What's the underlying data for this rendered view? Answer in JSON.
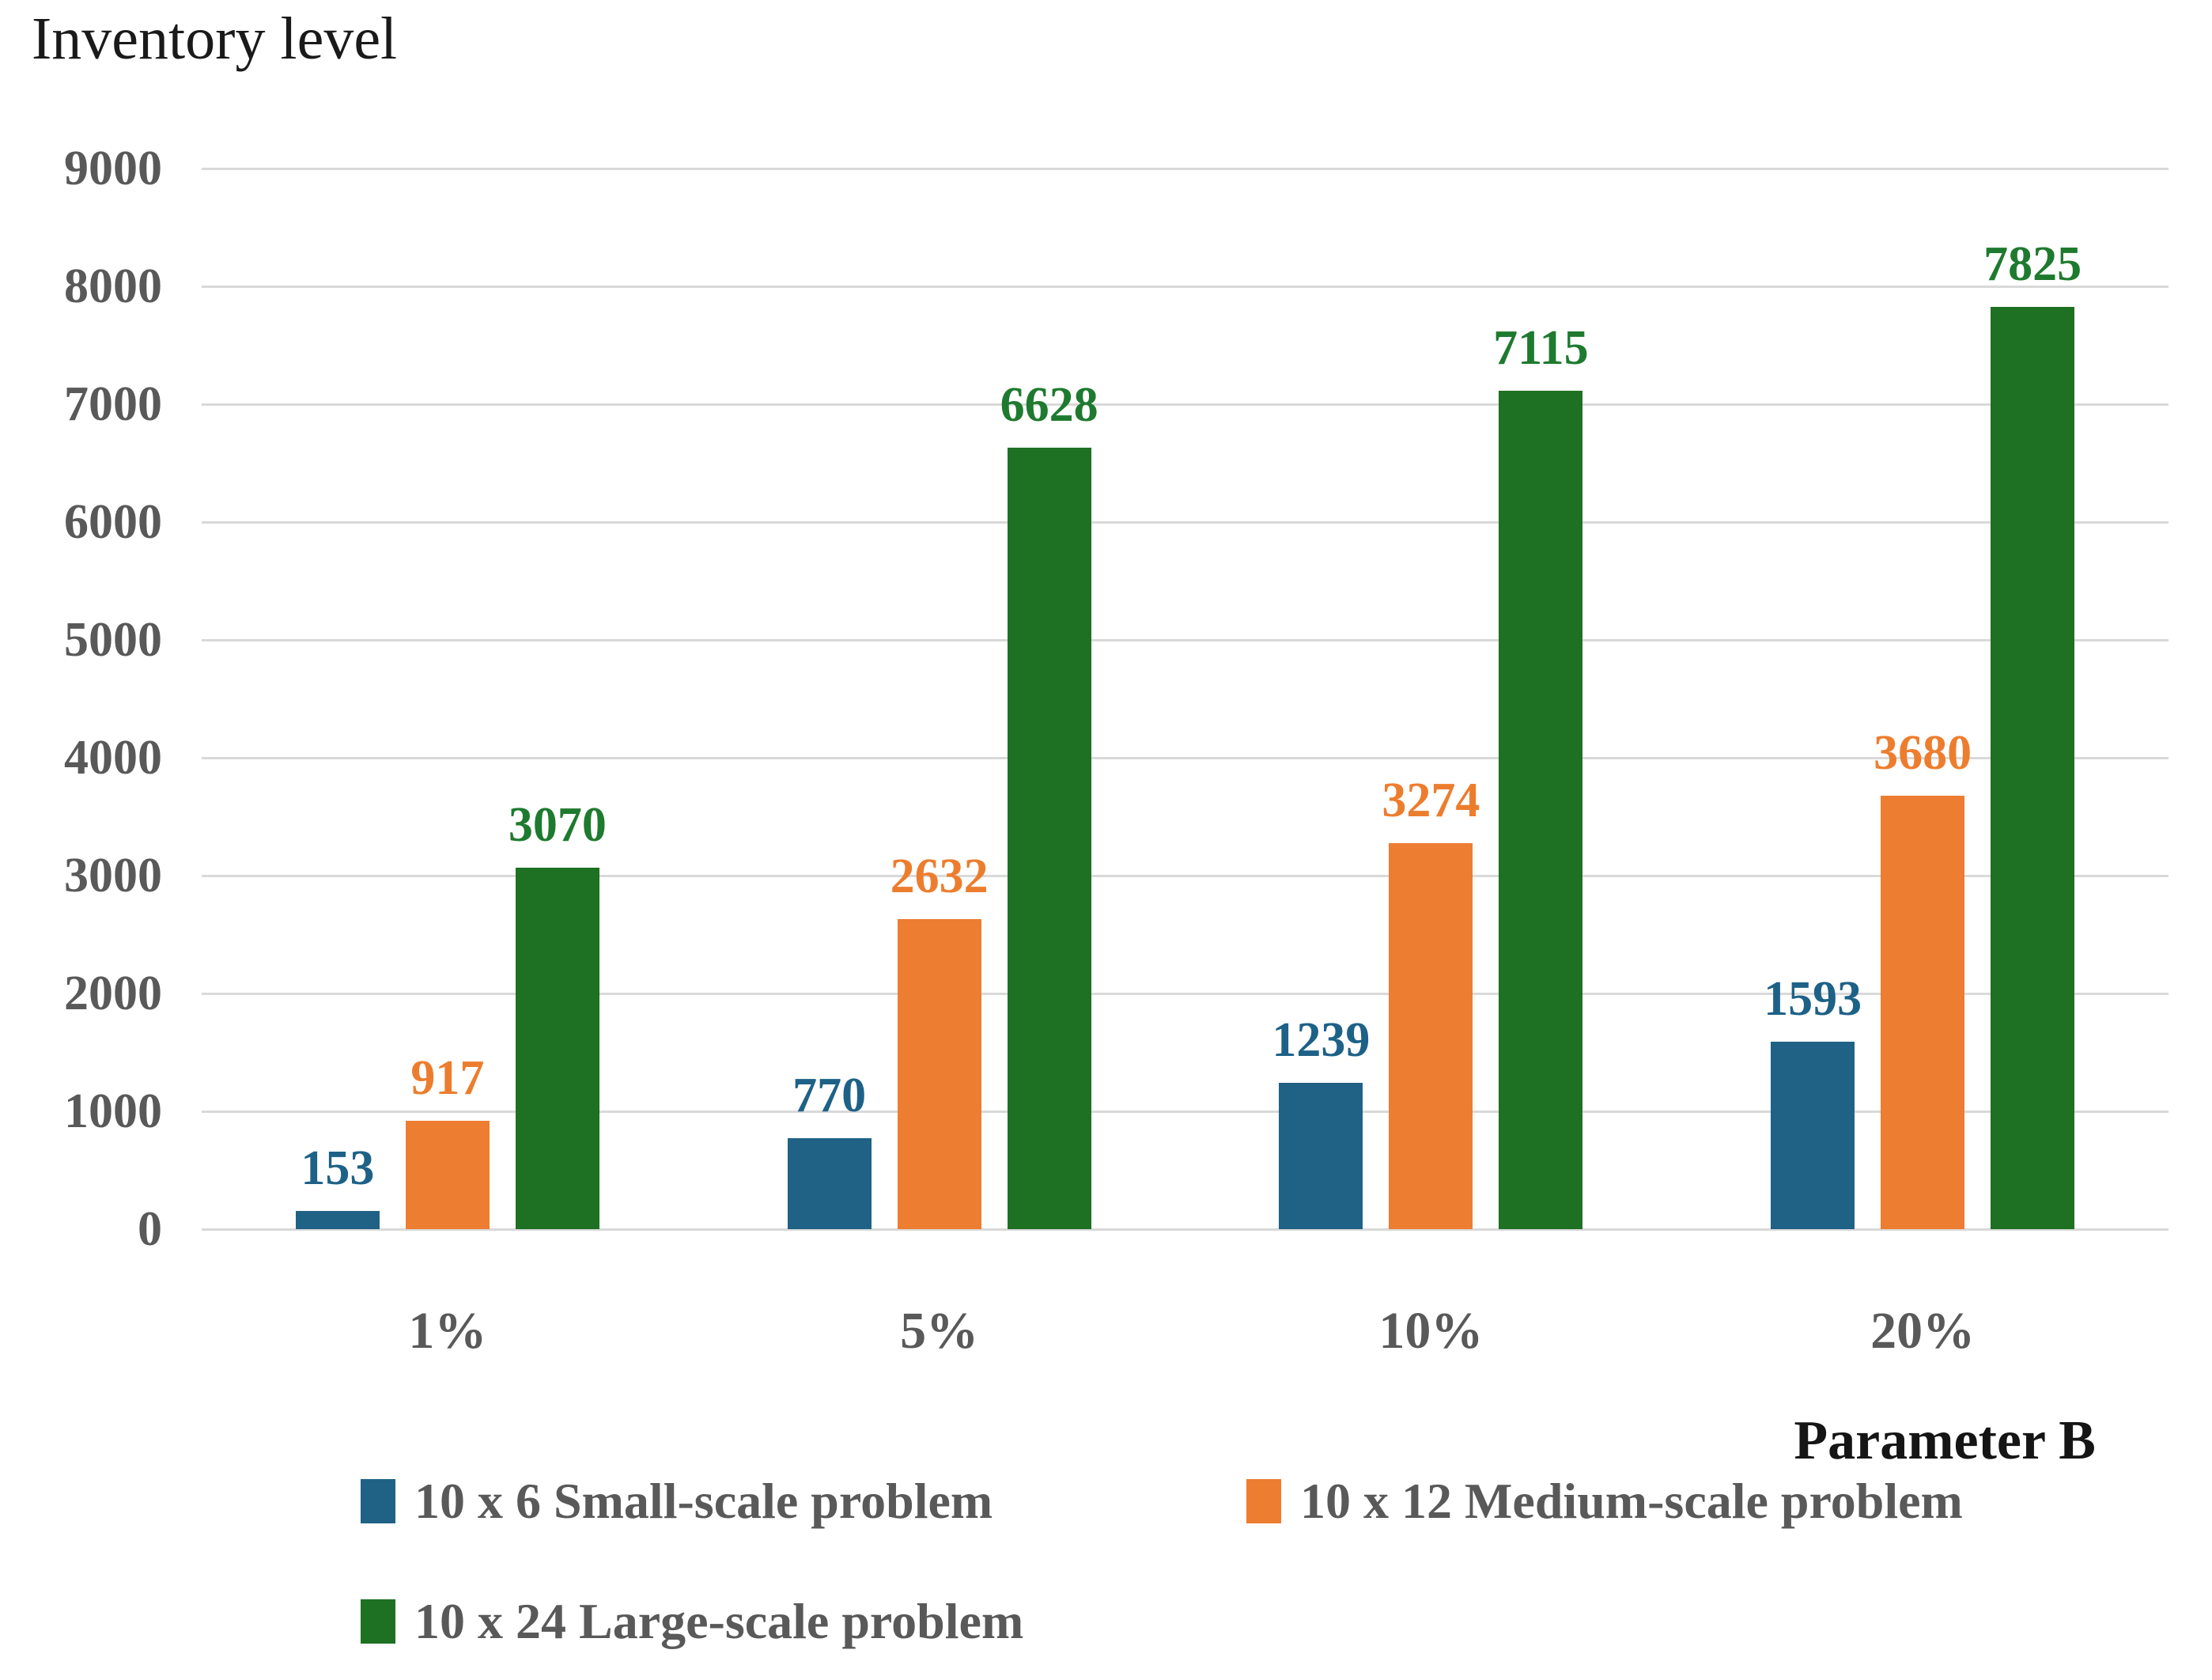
{
  "chart_data": {
    "type": "bar",
    "title": "Inventory level",
    "xlabel": "Parameter B",
    "categories": [
      "1%",
      "5%",
      "10%",
      "20%"
    ],
    "yticks": [
      0,
      1000,
      2000,
      3000,
      4000,
      5000,
      6000,
      7000,
      8000,
      9000
    ],
    "ylim": [
      0,
      9000
    ],
    "grid": true,
    "legend_position": "bottom",
    "series": [
      {
        "name": "10 x 6 Small-scale problem",
        "color": "#1F6285",
        "label_color": "#1D6187",
        "values": [
          153,
          770,
          1239,
          1593
        ]
      },
      {
        "name": "10 x 12 Medium-scale problem",
        "color": "#ED7D31",
        "label_color": "#ED7D2E",
        "values": [
          917,
          2632,
          3274,
          3680
        ]
      },
      {
        "name": "10 x 24 Large-scale problem",
        "color": "#1E7023",
        "label_color": "#1E7A2E",
        "values": [
          3070,
          6628,
          7115,
          7825
        ]
      }
    ]
  },
  "colors": {
    "grid": "#D9D9D9",
    "axis_text": "#595959",
    "title": "#1A1A1A",
    "xlabel": "#151515"
  }
}
